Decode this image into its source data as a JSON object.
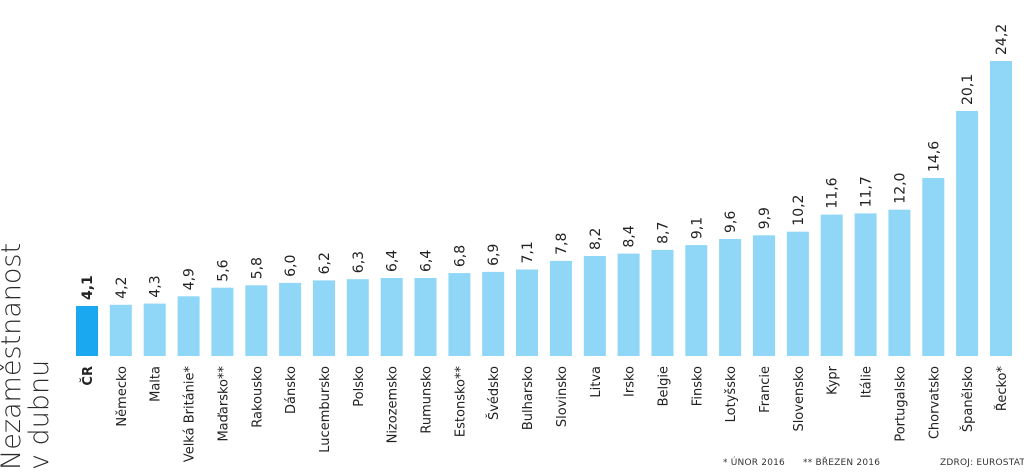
{
  "chart_data": {
    "type": "bar",
    "ylabel_lines": [
      "Nezaměstnanost",
      "v dubnu"
    ],
    "categories": [
      "ČR",
      "Německo",
      "Malta",
      "Velká Británie*",
      "Maďarsko**",
      "Rakousko",
      "Dánsko",
      "Lucembursko",
      "Polsko",
      "Nizozemsko",
      "Rumunsko",
      "Estonsko**",
      "Švédsko",
      "Bulharsko",
      "Slovinsko",
      "Litva",
      "Irsko",
      "Belgie",
      "Finsko",
      "Lotyšsko",
      "Francie",
      "Slovensko",
      "Kypr",
      "Itálie",
      "Portugalsko",
      "Chorvatsko",
      "Španělsko",
      "Řecko*"
    ],
    "values": [
      4.1,
      4.2,
      4.3,
      4.9,
      5.6,
      5.8,
      6.0,
      6.2,
      6.3,
      6.4,
      6.4,
      6.8,
      6.9,
      7.1,
      7.8,
      8.2,
      8.4,
      8.7,
      9.1,
      9.6,
      9.9,
      10.2,
      11.6,
      11.7,
      12.0,
      14.6,
      20.1,
      24.2
    ],
    "value_labels": [
      "4,1",
      "4,2",
      "4,3",
      "4,9",
      "5,6",
      "5,8",
      "6,0",
      "6,2",
      "6,3",
      "6,4",
      "6,4",
      "6,8",
      "6,9",
      "7,1",
      "7,8",
      "8,2",
      "8,4",
      "8,7",
      "9,1",
      "9,6",
      "9,9",
      "10,2",
      "11,6",
      "11,7",
      "12,0",
      "14,6",
      "20,1",
      "24,2"
    ],
    "highlight_index": 0,
    "colors": {
      "bar": "#8fd6f7",
      "highlight": "#1aa8f0",
      "text": "#222222"
    },
    "ylim": [
      0,
      24.2
    ],
    "grid": false,
    "legend": "none"
  },
  "footnotes": {
    "unor": "* ÚNOR 2016",
    "brezen": "** BŘEZEN 2016",
    "source": "ZDROJ: EUROSTAT"
  }
}
